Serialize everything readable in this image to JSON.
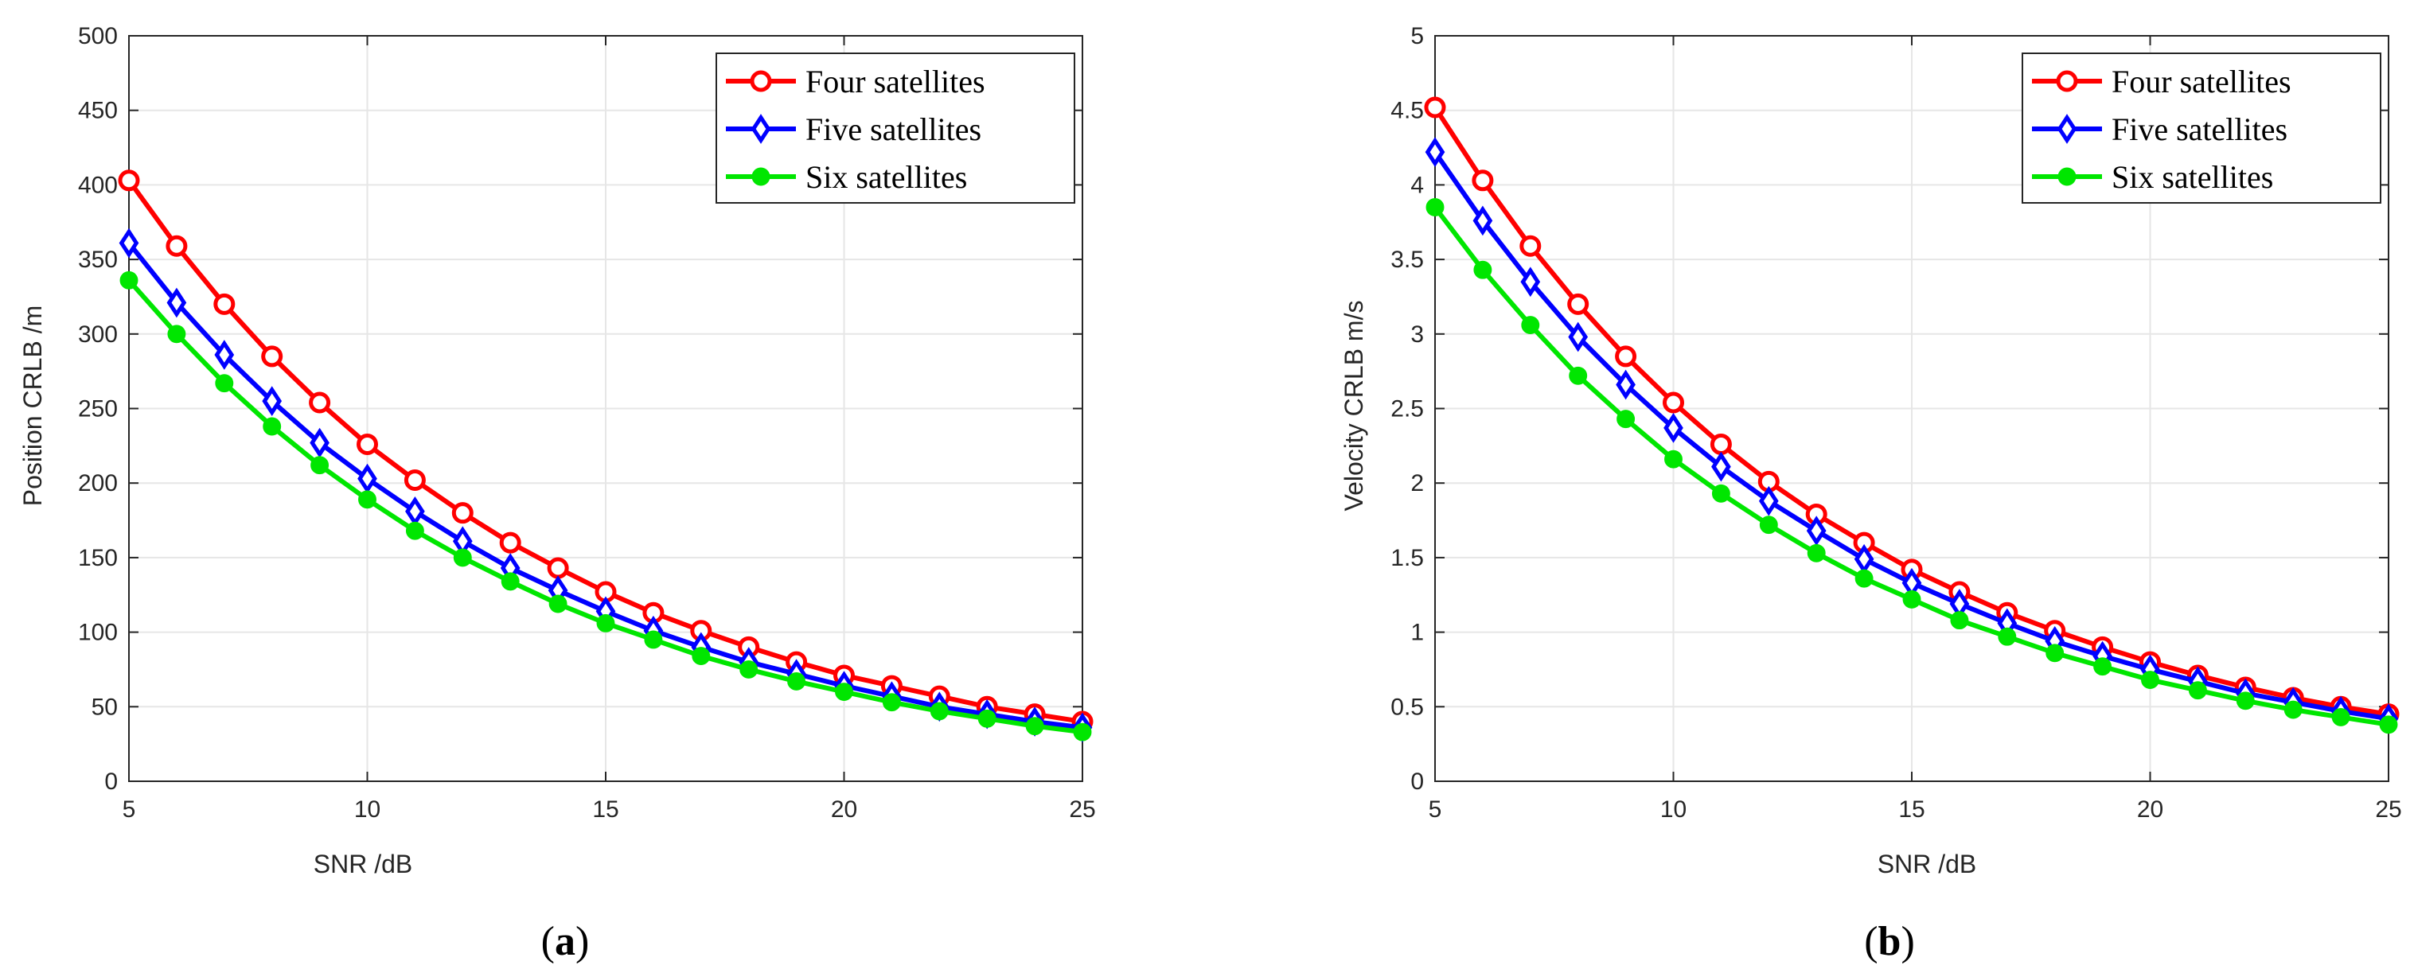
{
  "colors": {
    "four": "#ff0000",
    "five": "#0000ff",
    "six": "#00e600",
    "grid": "#e6e6e6",
    "axis": "#262626"
  },
  "chart_data": [
    {
      "type": "line",
      "caption": {
        "open": "(",
        "letter": "a",
        "close": ")"
      },
      "xlabel": "SNR /dB",
      "ylabel": "Position CRLB /m",
      "xlim": [
        5,
        25
      ],
      "ylim": [
        0,
        500
      ],
      "xticks": [
        5,
        10,
        15,
        20,
        25
      ],
      "yticks": [
        0,
        50,
        100,
        150,
        200,
        250,
        300,
        350,
        400,
        450,
        500
      ],
      "grid": true,
      "legend_position": "top-right",
      "x": [
        5,
        6,
        7,
        8,
        9,
        10,
        11,
        12,
        13,
        14,
        15,
        16,
        17,
        18,
        19,
        20,
        21,
        22,
        23,
        24,
        25
      ],
      "series": [
        {
          "name": "Four satellites",
          "color": "#ff0000",
          "marker": "circle",
          "values": [
            403,
            359,
            320,
            285,
            254,
            226,
            202,
            180,
            160,
            143,
            127,
            113,
            101,
            90,
            80,
            71,
            64,
            57,
            50,
            45,
            40
          ]
        },
        {
          "name": "Five satellites",
          "color": "#0000ff",
          "marker": "diamond",
          "values": [
            361,
            321,
            286,
            255,
            227,
            203,
            181,
            161,
            143,
            128,
            114,
            101,
            90,
            80,
            72,
            64,
            57,
            50,
            45,
            40,
            36
          ]
        },
        {
          "name": "Six satellites",
          "color": "#00e600",
          "marker": "dot",
          "values": [
            336,
            300,
            267,
            238,
            212,
            189,
            168,
            150,
            134,
            119,
            106,
            95,
            84,
            75,
            67,
            60,
            53,
            47,
            42,
            37,
            33
          ]
        }
      ]
    },
    {
      "type": "line",
      "caption": {
        "open": "(",
        "letter": "b",
        "close": ")"
      },
      "xlabel": "SNR /dB",
      "ylabel": "Velocity CRLB m/s",
      "xlim": [
        5,
        25
      ],
      "ylim": [
        0,
        5
      ],
      "xticks": [
        5,
        10,
        15,
        20,
        25
      ],
      "yticks": [
        0,
        0.5,
        1,
        1.5,
        2,
        2.5,
        3,
        3.5,
        4,
        4.5,
        5
      ],
      "grid": true,
      "legend_position": "top-right",
      "x": [
        5,
        6,
        7,
        8,
        9,
        10,
        11,
        12,
        13,
        14,
        15,
        16,
        17,
        18,
        19,
        20,
        21,
        22,
        23,
        24,
        25
      ],
      "series": [
        {
          "name": "Four satellites",
          "color": "#ff0000",
          "marker": "circle",
          "values": [
            4.52,
            4.03,
            3.59,
            3.2,
            2.85,
            2.54,
            2.26,
            2.01,
            1.79,
            1.6,
            1.42,
            1.27,
            1.13,
            1.01,
            0.9,
            0.8,
            0.71,
            0.63,
            0.56,
            0.5,
            0.45
          ]
        },
        {
          "name": "Five satellites",
          "color": "#0000ff",
          "marker": "diamond",
          "values": [
            4.22,
            3.76,
            3.35,
            2.98,
            2.66,
            2.37,
            2.11,
            1.88,
            1.68,
            1.49,
            1.33,
            1.19,
            1.06,
            0.94,
            0.84,
            0.75,
            0.67,
            0.59,
            0.53,
            0.47,
            0.42
          ]
        },
        {
          "name": "Six satellites",
          "color": "#00e600",
          "marker": "dot",
          "values": [
            3.85,
            3.43,
            3.06,
            2.72,
            2.43,
            2.16,
            1.93,
            1.72,
            1.53,
            1.36,
            1.22,
            1.08,
            0.97,
            0.86,
            0.77,
            0.68,
            0.61,
            0.54,
            0.48,
            0.43,
            0.38
          ]
        }
      ]
    }
  ]
}
